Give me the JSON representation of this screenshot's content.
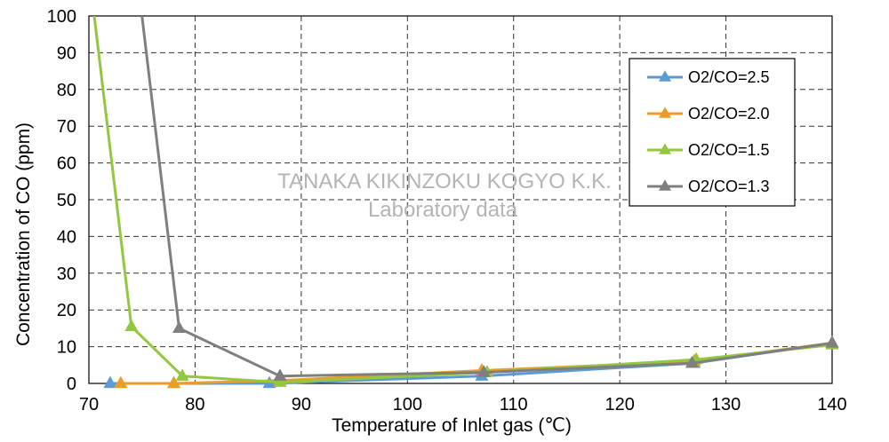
{
  "chart_data": {
    "type": "line",
    "xlabel": "Temperature of Inlet gas (℃)",
    "ylabel": "Concentration of CO (ppm)",
    "xlim": [
      70,
      140
    ],
    "ylim": [
      0,
      100
    ],
    "x_ticks": [
      70,
      80,
      90,
      100,
      110,
      120,
      130,
      140
    ],
    "y_ticks": [
      0,
      10,
      20,
      30,
      40,
      50,
      60,
      70,
      80,
      90,
      100
    ],
    "grid": "dashed",
    "legend_position": "top-right",
    "watermark": [
      "TANAKA KIKINZOKU KOGYO K.K.",
      "Laboratory data"
    ],
    "series": [
      {
        "name": "O2/CO=2.5",
        "color": "#5b9bd5",
        "points": [
          [
            72,
            0
          ],
          [
            78,
            0
          ],
          [
            87,
            0
          ],
          [
            107,
            2
          ],
          [
            127,
            5.5
          ],
          [
            140,
            11
          ]
        ]
      },
      {
        "name": "O2/CO=2.0",
        "color": "#ed9c29",
        "points": [
          [
            73,
            0
          ],
          [
            78,
            0
          ],
          [
            88,
            0.8
          ],
          [
            107,
            3.5
          ],
          [
            127,
            6
          ],
          [
            140,
            11
          ]
        ]
      },
      {
        "name": "O2/CO=1.5",
        "color": "#92c83e",
        "points": [
          [
            70.5,
            100
          ],
          [
            74,
            15.5
          ],
          [
            78.8,
            2
          ],
          [
            88,
            0.3
          ],
          [
            107.5,
            3
          ],
          [
            127.2,
            6.5
          ],
          [
            140,
            10.5
          ]
        ]
      },
      {
        "name": "O2/CO=1.3",
        "color": "#7f7f7f",
        "points": [
          [
            75,
            100
          ],
          [
            78.5,
            15
          ],
          [
            88,
            2
          ],
          [
            107.2,
            3
          ],
          [
            126.8,
            5.5
          ],
          [
            140,
            11
          ]
        ]
      }
    ]
  }
}
